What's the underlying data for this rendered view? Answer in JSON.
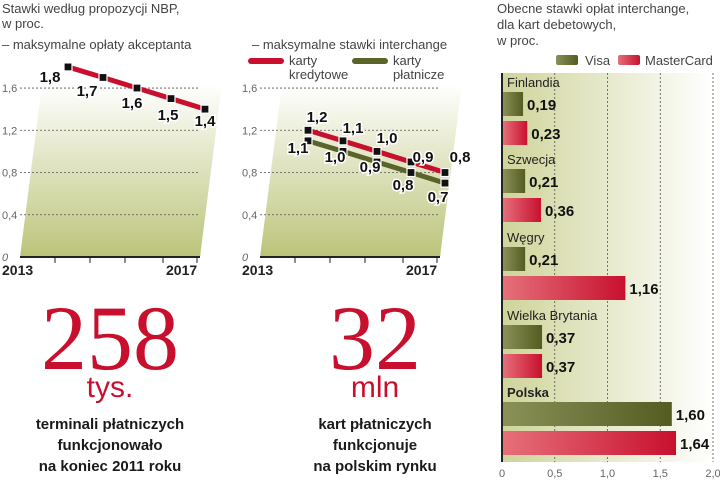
{
  "colors": {
    "red": "#c8102e",
    "green": "#5a6428",
    "bg_green": "#c8cf8e"
  },
  "left": {
    "title_line1": "Stawki według propozycji NBP,",
    "title_line2": "w proc.",
    "subtitle": "– maksymalne opłaty akceptanta",
    "stat_number": "258",
    "stat_unit": "tys.",
    "stat_desc": [
      "terminali płatniczych",
      "funkcjonowało",
      "na koniec 2011 roku"
    ]
  },
  "middle": {
    "subtitle": "– maksymalne stawki interchange",
    "legend_credit": [
      "karty",
      "kredytowe"
    ],
    "legend_debit": [
      "karty",
      "płatnicze"
    ],
    "stat_number": "32",
    "stat_unit": "mln",
    "stat_desc": [
      "kart płatniczych",
      "funkcjonuje",
      "na polskim rynku"
    ]
  },
  "right": {
    "title_line1": "Obecne stawki opłat interchange,",
    "title_line2": "dla kart debetowych,",
    "title_line3": "w proc.",
    "legend_visa": "Visa",
    "legend_mc": "MasterCard"
  },
  "chart_data": [
    {
      "type": "line",
      "title": "maksymalne opłaty akceptanta",
      "ylim": [
        0,
        1.6
      ],
      "yticks": [
        "0",
        "0,4",
        "0,8",
        "1,2",
        "1,6"
      ],
      "x": [
        "2013",
        "",
        "",
        "",
        "2017"
      ],
      "series": [
        {
          "name": "opłaty akceptanta",
          "values": [
            1.8,
            1.7,
            1.6,
            1.5,
            1.4
          ],
          "labels": [
            "1,8",
            "1,7",
            "1,6",
            "1,5",
            "1,4"
          ]
        }
      ]
    },
    {
      "type": "line",
      "title": "maksymalne stawki interchange",
      "ylim": [
        0,
        1.6
      ],
      "yticks": [
        "0",
        "0,4",
        "0,8",
        "1,2",
        "1,6"
      ],
      "x": [
        "2013",
        "",
        "",
        "",
        "2017"
      ],
      "series": [
        {
          "name": "karty kredytowe",
          "values": [
            1.2,
            1.1,
            1.0,
            0.9,
            0.8
          ],
          "labels": [
            "1,2",
            "1,1",
            "1,0",
            "0,9",
            "0,8"
          ]
        },
        {
          "name": "karty płatnicze",
          "values": [
            1.1,
            1.0,
            0.9,
            0.8,
            0.7
          ],
          "labels": [
            "1,1",
            "1,0",
            "0,9",
            "0,8",
            "0,7"
          ]
        }
      ]
    },
    {
      "type": "bar",
      "orientation": "horizontal",
      "title": "Obecne stawki opłat interchange, dla kart debetowych, w proc.",
      "xlim": [
        0,
        2.0
      ],
      "xticks": [
        "0",
        "0,5",
        "1,0",
        "1,5",
        "2,0"
      ],
      "categories": [
        "Finlandia",
        "Szwecja",
        "Węgry",
        "Wielka Brytania",
        "Polska"
      ],
      "series": [
        {
          "name": "Visa",
          "values": [
            0.19,
            0.21,
            0.21,
            0.37,
            1.6
          ],
          "labels": [
            "0,19",
            "0,21",
            "0,21",
            "0,37",
            "1,60"
          ]
        },
        {
          "name": "MasterCard",
          "values": [
            0.23,
            0.36,
            1.16,
            0.37,
            1.64
          ],
          "labels": [
            "0,23",
            "0,36",
            "1,16",
            "0,37",
            "1,64"
          ]
        }
      ]
    }
  ]
}
